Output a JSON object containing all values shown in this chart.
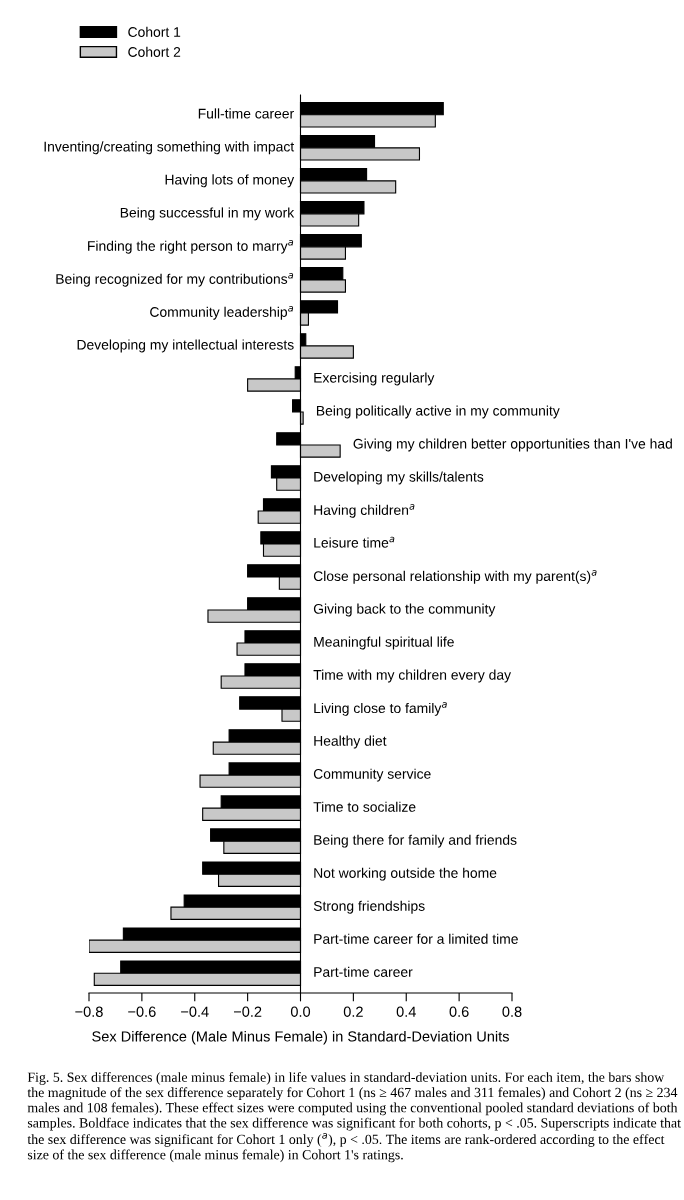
{
  "chart_data": {
    "type": "bar",
    "orientation": "horizontal",
    "xlabel": "Sex Difference (Male Minus Female) in Standard-Deviation Units",
    "categories": [
      "Full-time career",
      "Inventing/creating something with impact",
      "Having lots of money",
      "Being successful in my work",
      "Finding the right person to marry$^{a}$",
      "Being recognized for my contributions$^{a}$",
      "Community leadership$^{a}$",
      "Developing my intellectual interests",
      "Exercising regularly",
      "Being politically active in my community",
      "Giving my children better opportunities than I've had",
      "Developing my skills/talents",
      "Having children$^{a}$",
      "Leisure time$^{a}$",
      "Close personal relationship with my parent(s)$^{a}$",
      "Giving back to the community",
      "Meaningful spiritual life",
      "Time with my children every day",
      "Living close to family$^{a}$",
      "Healthy diet",
      "Community service",
      "Time to socialize",
      "Being there for family and friends",
      "Not working outside the home",
      "Strong friendships",
      "Part-time career for a limited time",
      "Part-time career"
    ],
    "series": [
      {
        "name": "Cohort 1",
        "color": "#000000",
        "values": [
          0.54,
          0.28,
          0.25,
          0.24,
          0.23,
          0.16,
          0.14,
          0.02,
          -0.02,
          -0.03,
          -0.09,
          -0.11,
          -0.14,
          -0.15,
          -0.2,
          -0.2,
          -0.21,
          -0.21,
          -0.23,
          -0.27,
          -0.27,
          -0.3,
          -0.34,
          -0.37,
          -0.44,
          -0.67,
          -0.68
        ]
      },
      {
        "name": "Cohort 2",
        "color": "#c8c8c8",
        "values": [
          0.51,
          0.45,
          0.36,
          0.22,
          0.17,
          0.17,
          0.03,
          0.2,
          -0.2,
          0.01,
          0.15,
          -0.09,
          -0.16,
          -0.14,
          -0.08,
          -0.35,
          -0.24,
          -0.3,
          -0.07,
          -0.33,
          -0.38,
          -0.37,
          -0.29,
          -0.31,
          -0.49,
          -0.8,
          -0.78
        ]
      }
    ],
    "xlim": [
      -0.8,
      0.8
    ],
    "xticks": [
      {
        "value": -0.8,
        "label": "−0.8"
      },
      {
        "value": -0.6,
        "label": "−0.6"
      },
      {
        "value": -0.4,
        "label": "−0.4"
      },
      {
        "value": -0.2,
        "label": "−0.2"
      },
      {
        "value": 0,
        "label": "0.0"
      },
      {
        "value": 0.2,
        "label": "0.2"
      },
      {
        "value": 0.4,
        "label": "0.4"
      },
      {
        "value": 0.6,
        "label": "0.6"
      },
      {
        "value": 0.8,
        "label": "0.8"
      }
    ],
    "legend": "top left",
    "grid": false,
    "annotations": [
      "Fig. 5. Sex differences (male minus female) in life values in standard-deviation units. For each item, the bars show the magnitude of the sex difference separately for Cohort 1 (ns ≥ 467 males and 311 females) and Cohort 2 (ns ≥ 234 males and 108 females). These effect sizes were computed using the conventional pooled standard deviations of both samples. Boldface indicates that the sex difference was significant for both cohorts, p < .05. Superscripts indicate that the sex difference was significant for Cohort 1 only ($^{a}$), p < .05. The items are rank-ordered according to the effect size of the sex difference (male minus female) in Cohort 1's ratings."
    ]
  }
}
